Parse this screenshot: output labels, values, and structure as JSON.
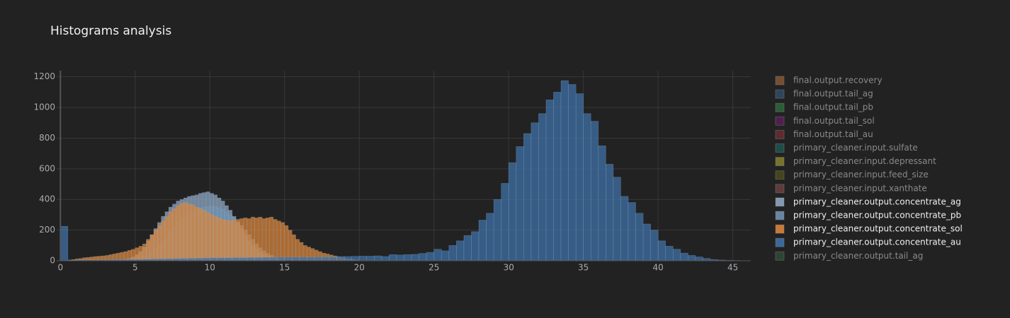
{
  "chart_data": {
    "type": "histogram",
    "title": "Histograms analysis",
    "barmode": "overlay",
    "opacity": 0.75,
    "xlim": [
      -0.25,
      46.2
    ],
    "ylim": [
      0,
      1240
    ],
    "xticks": [
      0,
      5,
      10,
      15,
      20,
      25,
      30,
      35,
      40,
      45
    ],
    "yticks": [
      0,
      200,
      400,
      600,
      800,
      1000,
      1200
    ],
    "grid": true,
    "legend": "right",
    "series": [
      {
        "name": "final.output.recovery",
        "color": "#8c5a36",
        "visible": false
      },
      {
        "name": "final.output.tail_ag",
        "color": "#344f6b",
        "visible": false
      },
      {
        "name": "final.output.tail_pb",
        "color": "#2e6b3c",
        "visible": false
      },
      {
        "name": "final.output.tail_sol",
        "color": "#5c1f5a",
        "visible": false
      },
      {
        "name": "final.output.tail_au",
        "color": "#6e2e34",
        "visible": false
      },
      {
        "name": "primary_cleaner.input.sulfate",
        "color": "#1f5753",
        "visible": false
      },
      {
        "name": "primary_cleaner.input.depressant",
        "color": "#8a8a30",
        "visible": false
      },
      {
        "name": "primary_cleaner.input.feed_size",
        "color": "#4d4d1e",
        "visible": false
      },
      {
        "name": "primary_cleaner.input.xanthate",
        "color": "#6e4444",
        "visible": false
      },
      {
        "name": "primary_cleaner.output.concentrate_ag",
        "color": "#8ea6c2",
        "visible": true,
        "bins": [
          4,
          4.25,
          4.5,
          4.75,
          5,
          5.25,
          5.5,
          5.75,
          6,
          6.25,
          6.5,
          6.75,
          7,
          7.25,
          7.5,
          7.75,
          8,
          8.25,
          8.5,
          8.75,
          9,
          9.25,
          9.5,
          9.75,
          10,
          10.25,
          10.5,
          10.75,
          11,
          11.25,
          11.5,
          11.75,
          12,
          12.25,
          12.5,
          12.75,
          13,
          13.25,
          13.5,
          13.75,
          14,
          14.25,
          14.5,
          14.75,
          15
        ],
        "values": [
          5,
          10,
          15,
          25,
          40,
          60,
          90,
          130,
          170,
          210,
          250,
          290,
          320,
          350,
          370,
          390,
          400,
          410,
          420,
          425,
          430,
          440,
          445,
          450,
          440,
          430,
          410,
          390,
          360,
          330,
          290,
          250,
          210,
          170,
          130,
          100,
          75,
          55,
          40,
          28,
          18,
          12,
          7,
          4
        ]
      },
      {
        "name": "primary_cleaner.output.concentrate_pb",
        "color": "#6f91b0",
        "visible": true,
        "bins": [
          5,
          5.25,
          5.5,
          5.75,
          6,
          6.25,
          6.5,
          6.75,
          7,
          7.25,
          7.5,
          7.75,
          8,
          8.25,
          8.5,
          8.75,
          9,
          9.25,
          9.5,
          9.75,
          10,
          10.25,
          10.5,
          10.75,
          11,
          11.25,
          11.5,
          11.75,
          12,
          12.25,
          12.5,
          12.75,
          13,
          13.25,
          13.5,
          13.75,
          14,
          14.25,
          14.5,
          14.75,
          15
        ],
        "values": [
          10,
          15,
          25,
          40,
          60,
          80,
          105,
          130,
          160,
          190,
          220,
          250,
          275,
          295,
          310,
          325,
          335,
          345,
          350,
          352,
          355,
          350,
          345,
          335,
          320,
          300,
          280,
          255,
          230,
          200,
          170,
          140,
          110,
          85,
          65,
          48,
          35,
          24,
          15,
          8
        ]
      },
      {
        "name": "primary_cleaner.output.concentrate_sol",
        "color": "#d9843a",
        "visible": true,
        "bins": [
          0,
          0.25,
          0.5,
          0.75,
          1,
          1.25,
          1.5,
          1.75,
          2,
          2.25,
          2.5,
          2.75,
          3,
          3.25,
          3.5,
          3.75,
          4,
          4.25,
          4.5,
          4.75,
          5,
          5.25,
          5.5,
          5.75,
          6,
          6.25,
          6.5,
          6.75,
          7,
          7.25,
          7.5,
          7.75,
          8,
          8.25,
          8.5,
          8.75,
          9,
          9.25,
          9.5,
          9.75,
          10,
          10.25,
          10.5,
          10.75,
          11,
          11.25,
          11.5,
          11.75,
          12,
          12.25,
          12.5,
          12.75,
          13,
          13.25,
          13.5,
          13.75,
          14,
          14.25,
          14.5,
          14.75,
          15,
          15.25,
          15.5,
          15.75,
          16,
          16.25,
          16.5,
          16.75,
          17,
          17.25,
          17.5,
          17.75,
          18,
          18.25,
          18.5,
          18.75,
          19,
          19.25,
          19.5,
          19.75,
          20
        ],
        "values": [
          0,
          2,
          5,
          8,
          12,
          15,
          20,
          22,
          25,
          28,
          30,
          32,
          35,
          40,
          45,
          50,
          55,
          60,
          68,
          75,
          85,
          95,
          110,
          140,
          170,
          200,
          230,
          260,
          290,
          320,
          340,
          360,
          375,
          380,
          370,
          365,
          350,
          340,
          330,
          315,
          300,
          290,
          280,
          270,
          265,
          260,
          265,
          270,
          275,
          280,
          275,
          285,
          280,
          285,
          275,
          280,
          285,
          270,
          260,
          250,
          230,
          200,
          170,
          140,
          120,
          100,
          90,
          80,
          70,
          60,
          50,
          45,
          38,
          32,
          26,
          20,
          15,
          12,
          8,
          5
        ]
      },
      {
        "name": "primary_cleaner.output.concentrate_au",
        "color": "#3f71a8",
        "visible": true,
        "bins": [
          0,
          0.5,
          1,
          1.5,
          2,
          2.5,
          3,
          3.5,
          4,
          4.5,
          5,
          5.5,
          6,
          6.5,
          7,
          7.5,
          8,
          8.5,
          9,
          9.5,
          10,
          10.5,
          11,
          11.5,
          12,
          12.5,
          13,
          13.5,
          14,
          14.5,
          15,
          15.5,
          16,
          16.5,
          17,
          17.5,
          18,
          18.5,
          19,
          19.5,
          20,
          20.5,
          21,
          21.5,
          22,
          22.5,
          23,
          23.5,
          24,
          24.5,
          25,
          25.5,
          26,
          26.5,
          27,
          27.5,
          28,
          28.5,
          29,
          29.5,
          30,
          30.5,
          31,
          31.5,
          32,
          32.5,
          33,
          33.5,
          34,
          34.5,
          35,
          35.5,
          36,
          36.5,
          37,
          37.5,
          38,
          38.5,
          39,
          39.5,
          40,
          40.5,
          41,
          41.5,
          42,
          42.5,
          43,
          43.5,
          44,
          44.5,
          45,
          45.5,
          46
        ],
        "values": [
          225,
          4,
          5,
          6,
          6,
          7,
          8,
          8,
          9,
          10,
          10,
          11,
          12,
          13,
          14,
          15,
          16,
          17,
          18,
          19,
          20,
          20,
          20,
          21,
          21,
          22,
          22,
          23,
          23,
          24,
          24,
          25,
          25,
          25,
          26,
          26,
          27,
          28,
          28,
          29,
          30,
          30,
          32,
          28,
          40,
          38,
          40,
          42,
          48,
          55,
          75,
          65,
          100,
          130,
          165,
          190,
          265,
          310,
          400,
          505,
          640,
          745,
          830,
          900,
          960,
          1050,
          1100,
          1175,
          1150,
          1090,
          960,
          910,
          750,
          630,
          545,
          420,
          380,
          310,
          240,
          200,
          130,
          95,
          75,
          50,
          35,
          25,
          15,
          8,
          5,
          3,
          2,
          1
        ]
      },
      {
        "name": "primary_cleaner.output.tail_ag",
        "color": "#2f4d3a",
        "visible": false
      }
    ]
  }
}
